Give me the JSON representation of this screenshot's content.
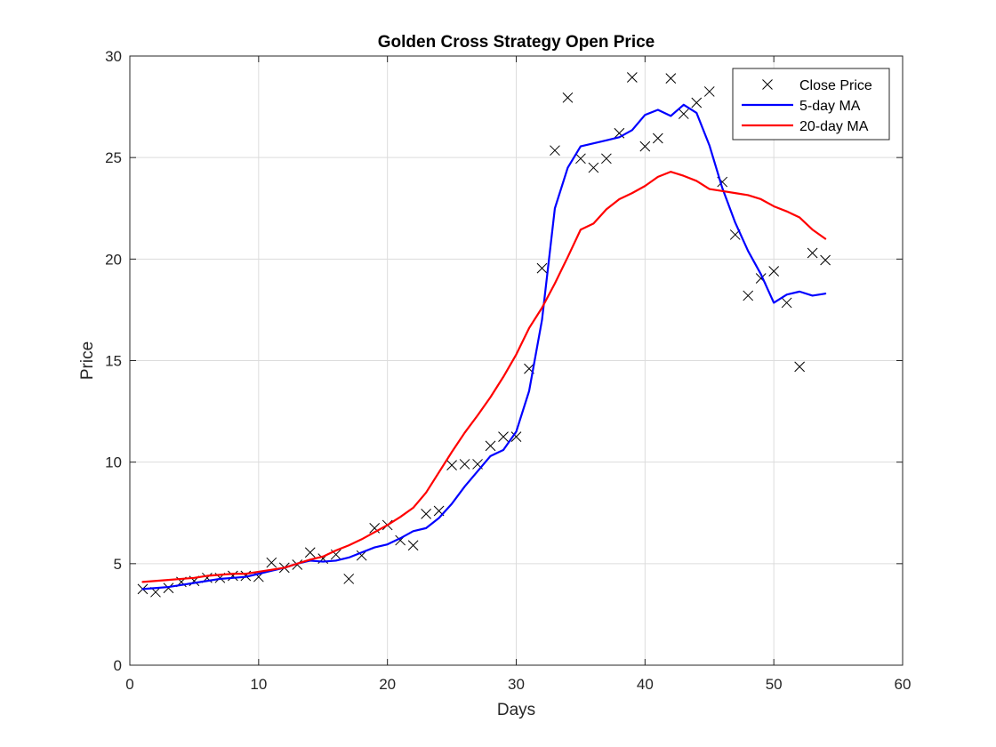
{
  "chart_data": {
    "type": "line",
    "title": "Golden Cross Strategy Open Price",
    "xlabel": "Days",
    "ylabel": "Price",
    "xlim": [
      0,
      60
    ],
    "ylim": [
      0,
      30
    ],
    "xticks": [
      0,
      10,
      20,
      30,
      40,
      50,
      60
    ],
    "yticks": [
      0,
      5,
      10,
      15,
      20,
      25,
      30
    ],
    "grid": true,
    "legend_position": "top-right",
    "series": [
      {
        "name": "Close Price",
        "kind": "scatter",
        "marker": "x",
        "color": "#000000",
        "x": [
          1,
          2,
          3,
          4,
          5,
          6,
          7,
          8,
          9,
          10,
          11,
          12,
          13,
          14,
          15,
          16,
          17,
          18,
          19,
          20,
          21,
          22,
          23,
          24,
          25,
          26,
          27,
          28,
          29,
          30,
          31,
          32,
          33,
          34,
          35,
          36,
          37,
          38,
          39,
          40,
          41,
          42,
          43,
          44,
          45,
          46,
          47,
          48,
          49,
          50,
          51,
          52,
          53,
          54
        ],
        "y": [
          3.75,
          3.6,
          3.8,
          4.1,
          4.15,
          4.3,
          4.3,
          4.4,
          4.4,
          4.35,
          5.05,
          4.8,
          4.95,
          5.55,
          5.25,
          5.45,
          4.25,
          5.4,
          6.75,
          6.9,
          6.15,
          5.9,
          7.45,
          7.6,
          9.85,
          9.9,
          9.9,
          10.8,
          11.25,
          11.25,
          14.6,
          19.55,
          25.35,
          27.95,
          24.95,
          24.5,
          24.95,
          26.2,
          28.95,
          25.55,
          25.95,
          28.9,
          27.15,
          27.7,
          28.25,
          23.8,
          21.2,
          18.2,
          19.05,
          19.4,
          17.85,
          14.7,
          20.3,
          19.95
        ]
      },
      {
        "name": "5-day MA",
        "kind": "line",
        "color": "#0000ff",
        "x": [
          1,
          2,
          3,
          4,
          5,
          6,
          7,
          8,
          9,
          10,
          11,
          12,
          13,
          14,
          15,
          16,
          17,
          18,
          19,
          20,
          21,
          22,
          23,
          24,
          25,
          26,
          27,
          28,
          29,
          30,
          31,
          32,
          33,
          34,
          35,
          36,
          37,
          38,
          39,
          40,
          41,
          42,
          43,
          44,
          45,
          46,
          47,
          48,
          49,
          50,
          51,
          52,
          53,
          54
        ],
        "y": [
          3.75,
          3.8,
          3.85,
          3.95,
          4.05,
          4.15,
          4.25,
          4.3,
          4.35,
          4.5,
          4.65,
          4.8,
          5.0,
          5.15,
          5.1,
          5.15,
          5.3,
          5.55,
          5.8,
          5.95,
          6.25,
          6.6,
          6.75,
          7.25,
          7.95,
          8.8,
          9.55,
          10.3,
          10.6,
          11.5,
          13.5,
          17.0,
          22.5,
          24.5,
          25.55,
          25.7,
          25.85,
          26.0,
          26.35,
          27.1,
          27.35,
          27.05,
          27.6,
          27.2,
          25.6,
          23.5,
          21.8,
          20.4,
          19.25,
          17.85,
          18.25,
          18.4,
          18.2,
          18.3
        ]
      },
      {
        "name": "20-day MA",
        "kind": "line",
        "color": "#ff0000",
        "x": [
          1,
          2,
          3,
          4,
          5,
          6,
          7,
          8,
          9,
          10,
          11,
          12,
          13,
          14,
          15,
          16,
          17,
          18,
          19,
          20,
          21,
          22,
          23,
          24,
          25,
          26,
          27,
          28,
          29,
          30,
          31,
          32,
          33,
          34,
          35,
          36,
          37,
          38,
          39,
          40,
          41,
          42,
          43,
          44,
          45,
          46,
          47,
          48,
          49,
          50,
          51,
          52,
          53,
          54
        ],
        "y": [
          4.1,
          4.15,
          4.2,
          4.25,
          4.3,
          4.4,
          4.45,
          4.5,
          4.5,
          4.6,
          4.7,
          4.8,
          5.0,
          5.2,
          5.35,
          5.65,
          5.9,
          6.2,
          6.55,
          6.9,
          7.3,
          7.75,
          8.5,
          9.5,
          10.5,
          11.45,
          12.3,
          13.2,
          14.2,
          15.3,
          16.6,
          17.6,
          18.8,
          20.1,
          21.45,
          21.75,
          22.45,
          22.95,
          23.25,
          23.6,
          24.05,
          24.3,
          24.1,
          23.85,
          23.45,
          23.35,
          23.25,
          23.15,
          22.95,
          22.6,
          22.35,
          22.05,
          21.45,
          21.0
        ]
      }
    ]
  }
}
